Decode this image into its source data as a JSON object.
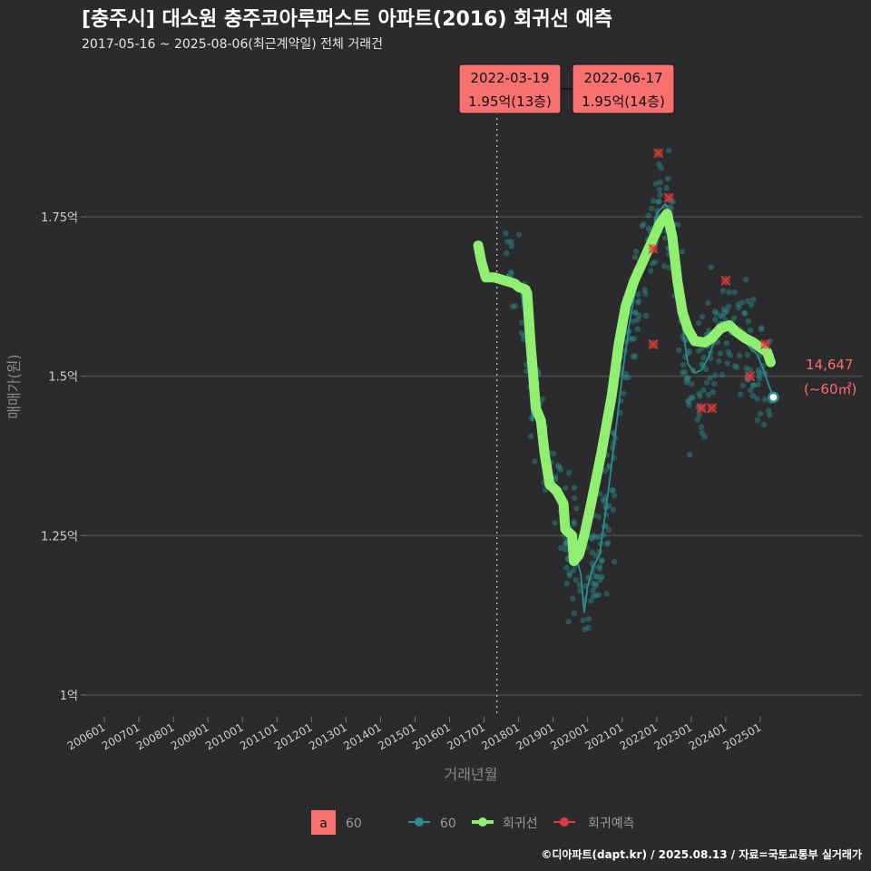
{
  "chart_data": {
    "type": "line",
    "title": "[충주시] 대소원 충주코아루퍼스트 아파트(2016) 회귀선 예측",
    "subtitle": "2017-05-16 ~ 2025-08-06(최근계약일) 전체 거래건",
    "xlabel": "거래년월",
    "ylabel": "매매가(원)",
    "ylim": [
      0.96,
      2.01
    ],
    "y_ticks": [
      {
        "value": 1.0,
        "label": "1억"
      },
      {
        "value": 1.25,
        "label": "1.25억"
      },
      {
        "value": 1.5,
        "label": "1.5억"
      },
      {
        "value": 1.75,
        "label": "1.75억"
      }
    ],
    "x_ticks": [
      "200601",
      "200701",
      "200801",
      "200901",
      "201001",
      "201101",
      "201201",
      "201301",
      "201401",
      "201501",
      "201601",
      "201701",
      "201801",
      "201901",
      "202001",
      "202101",
      "202201",
      "202301",
      "202401",
      "202501"
    ],
    "x_range_years": [
      2005.2,
      2026.1
    ],
    "reference_line_year": 2017.37,
    "series": [
      {
        "name": "회귀선",
        "color": "#90ee70",
        "points": [
          [
            2016.83,
            1.705
          ],
          [
            2016.92,
            1.68
          ],
          [
            2017.05,
            1.655
          ],
          [
            2017.3,
            1.655
          ],
          [
            2017.6,
            1.65
          ],
          [
            2017.9,
            1.645
          ],
          [
            2018.0,
            1.64
          ],
          [
            2018.2,
            1.636
          ],
          [
            2018.25,
            1.63
          ],
          [
            2018.35,
            1.55
          ],
          [
            2018.5,
            1.45
          ],
          [
            2018.65,
            1.43
          ],
          [
            2018.75,
            1.38
          ],
          [
            2018.9,
            1.33
          ],
          [
            2019.1,
            1.32
          ],
          [
            2019.3,
            1.3
          ],
          [
            2019.35,
            1.26
          ],
          [
            2019.55,
            1.25
          ],
          [
            2019.6,
            1.21
          ],
          [
            2019.75,
            1.22
          ],
          [
            2019.9,
            1.25
          ],
          [
            2020.1,
            1.3
          ],
          [
            2020.4,
            1.38
          ],
          [
            2020.7,
            1.47
          ],
          [
            2020.9,
            1.55
          ],
          [
            2021.1,
            1.61
          ],
          [
            2021.35,
            1.65
          ],
          [
            2021.6,
            1.68
          ],
          [
            2021.85,
            1.71
          ],
          [
            2022.1,
            1.74
          ],
          [
            2022.3,
            1.755
          ],
          [
            2022.45,
            1.72
          ],
          [
            2022.6,
            1.65
          ],
          [
            2022.75,
            1.6
          ],
          [
            2022.9,
            1.575
          ],
          [
            2023.1,
            1.555
          ],
          [
            2023.4,
            1.553
          ],
          [
            2023.6,
            1.56
          ],
          [
            2023.85,
            1.575
          ],
          [
            2024.1,
            1.58
          ],
          [
            2024.3,
            1.57
          ],
          [
            2024.55,
            1.56
          ],
          [
            2024.8,
            1.553
          ],
          [
            2025.0,
            1.545
          ],
          [
            2025.2,
            1.538
          ],
          [
            2025.3,
            1.522
          ]
        ]
      },
      {
        "name": "60",
        "color": "#2a8d8f",
        "points": [
          [
            2017.65,
            1.66
          ],
          [
            2017.9,
            1.65
          ],
          [
            2018.05,
            1.64
          ],
          [
            2018.15,
            1.6
          ],
          [
            2018.3,
            1.5
          ],
          [
            2018.4,
            1.43
          ],
          [
            2018.55,
            1.49
          ],
          [
            2018.7,
            1.4
          ],
          [
            2018.9,
            1.33
          ],
          [
            2019.1,
            1.32
          ],
          [
            2019.3,
            1.28
          ],
          [
            2019.5,
            1.24
          ],
          [
            2019.65,
            1.22
          ],
          [
            2019.8,
            1.19
          ],
          [
            2019.9,
            1.13
          ],
          [
            2020.0,
            1.17
          ],
          [
            2020.15,
            1.2
          ],
          [
            2020.35,
            1.22
          ],
          [
            2020.6,
            1.32
          ],
          [
            2020.85,
            1.43
          ],
          [
            2021.0,
            1.5
          ],
          [
            2021.2,
            1.58
          ],
          [
            2021.4,
            1.64
          ],
          [
            2021.6,
            1.68
          ],
          [
            2021.85,
            1.72
          ],
          [
            2022.0,
            1.755
          ],
          [
            2022.25,
            1.77
          ],
          [
            2022.45,
            1.75
          ],
          [
            2022.6,
            1.68
          ],
          [
            2022.75,
            1.58
          ],
          [
            2022.9,
            1.52
          ],
          [
            2023.1,
            1.505
          ],
          [
            2023.3,
            1.51
          ],
          [
            2023.5,
            1.53
          ],
          [
            2023.7,
            1.56
          ],
          [
            2023.85,
            1.585
          ],
          [
            2024.05,
            1.585
          ],
          [
            2024.2,
            1.575
          ],
          [
            2024.45,
            1.56
          ],
          [
            2024.7,
            1.545
          ],
          [
            2024.9,
            1.535
          ],
          [
            2025.1,
            1.51
          ],
          [
            2025.22,
            1.49
          ],
          [
            2025.38,
            1.467
          ]
        ]
      }
    ],
    "points_60_count": 420,
    "prediction_points": [
      [
        2021.9,
        1.55
      ],
      [
        2021.9,
        1.7
      ],
      [
        2022.05,
        1.85
      ],
      [
        2022.35,
        1.78
      ],
      [
        2023.3,
        1.45
      ],
      [
        2023.6,
        1.45
      ],
      [
        2024.0,
        1.65
      ],
      [
        2024.7,
        1.5
      ],
      [
        2025.15,
        1.55
      ]
    ],
    "annotations": [
      {
        "date": "2022-03-19",
        "price": "1.95억(13층)"
      },
      {
        "date": "2022-06-17",
        "price": "1.95억(14층)"
      }
    ],
    "end_label": {
      "value": "14,647",
      "unit": "(~60㎡)"
    },
    "legend": [
      {
        "kind": "text",
        "key": "a",
        "label": "60"
      },
      {
        "kind": "point",
        "label": "60"
      },
      {
        "kind": "line",
        "label": "회귀선"
      },
      {
        "kind": "pred",
        "label": "회귀예측"
      }
    ],
    "caption": "©디아파트(dapt.kr) / 2025.08.13 / 자료=국토교통부 실거래가"
  },
  "colors": {
    "background": "#2b2b2d",
    "grid": "#4a4a4c",
    "regression": "#90ee70",
    "series_60": "#2a8d8f",
    "prediction": "#e03a3a",
    "annotation_fill": "#f87171"
  }
}
